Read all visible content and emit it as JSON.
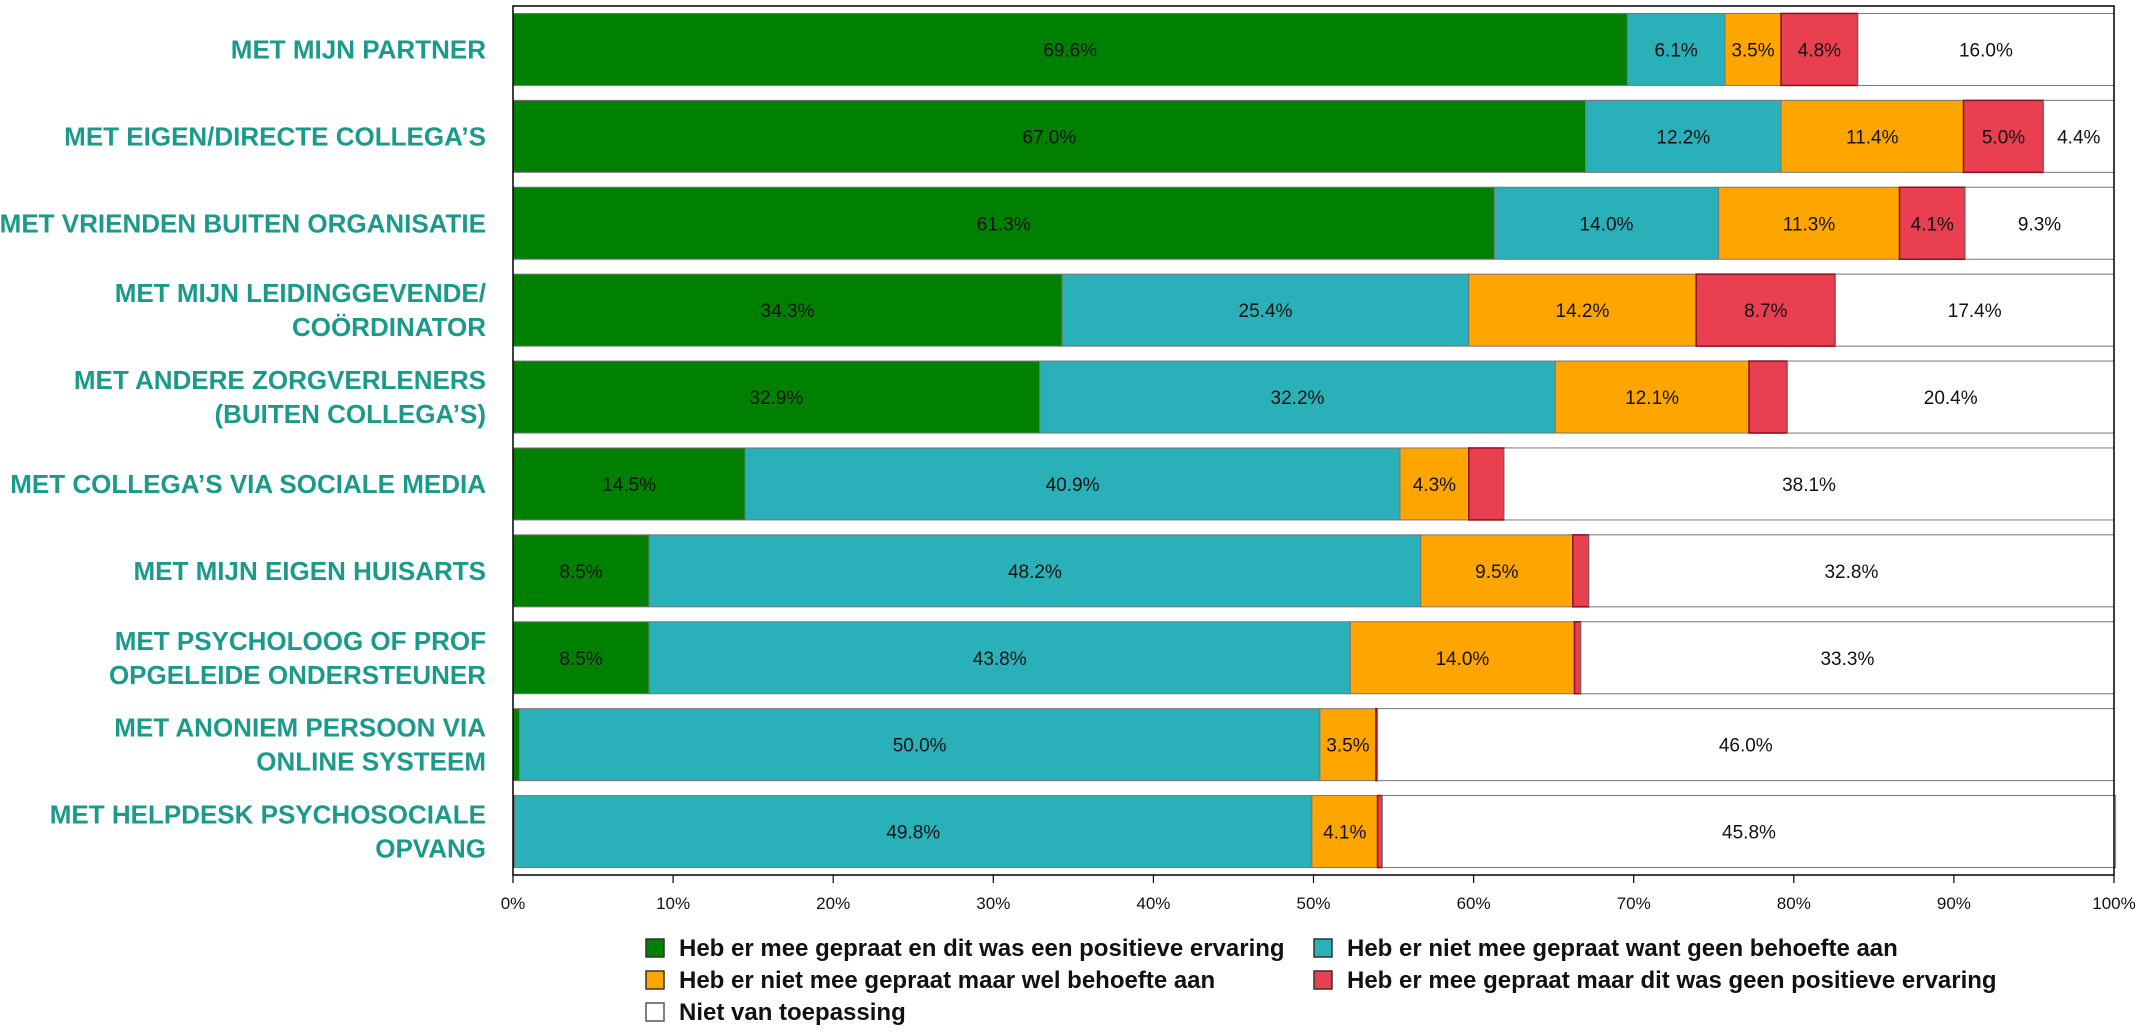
{
  "chart_data": {
    "type": "bar",
    "orientation": "horizontal",
    "stacked": true,
    "title": "",
    "xlabel": "",
    "ylabel": "",
    "xlim": [
      0,
      100
    ],
    "x_ticks": [
      "0%",
      "10%",
      "20%",
      "30%",
      "40%",
      "50%",
      "60%",
      "70%",
      "80%",
      "90%",
      "100%"
    ],
    "grid": false,
    "legend_position": "bottom",
    "categories": [
      [
        "MET MIJN PARTNER"
      ],
      [
        "MET EIGEN/DIRECTE COLLEGA’S"
      ],
      [
        "MET VRIENDEN BUITEN ORGANISATIE"
      ],
      [
        "MET MIJN LEIDINGGEVENDE/",
        "COÖRDINATOR"
      ],
      [
        "MET ANDERE ZORGVERLENERS",
        "(BUITEN COLLEGA’S)"
      ],
      [
        "MET COLLEGA’S VIA SOCIALE MEDIA"
      ],
      [
        "MET MIJN EIGEN HUISARTS"
      ],
      [
        "MET PSYCHOLOOG OF PROF",
        "OPGELEIDE ONDERSTEUNER"
      ],
      [
        "MET ANONIEM PERSOON VIA",
        "ONLINE SYSTEEM"
      ],
      [
        "MET HELPDESK PSYCHOSOCIALE",
        "OPVANG"
      ]
    ],
    "series": [
      {
        "name": "Heb er mee gepraat en dit was een positieve ervaring",
        "color": "#008000",
        "values": [
          69.6,
          67.0,
          61.3,
          34.3,
          32.9,
          14.5,
          8.5,
          8.5,
          0.4,
          0.1
        ],
        "labels": [
          "69.6%",
          "67.0%",
          "61.3%",
          "34.3%",
          "32.9%",
          "14.5%",
          "8.5%",
          "8.5%",
          "",
          ""
        ]
      },
      {
        "name": "Heb er niet mee gepraat want geen behoefte aan",
        "color": "#2ab0b8",
        "values": [
          6.1,
          12.2,
          14.0,
          25.4,
          32.2,
          40.9,
          48.2,
          43.8,
          50.0,
          49.8
        ],
        "labels": [
          "6.1%",
          "12.2%",
          "14.0%",
          "25.4%",
          "32.2%",
          "40.9%",
          "48.2%",
          "43.8%",
          "50.0%",
          "49.8%"
        ]
      },
      {
        "name": "Heb er niet mee gepraat maar wel behoefte aan",
        "color": "#ffa500",
        "values": [
          3.5,
          11.4,
          11.3,
          14.2,
          12.1,
          4.3,
          9.5,
          14.0,
          3.5,
          4.1
        ],
        "labels": [
          "3.5%",
          "11.4%",
          "11.3%",
          "14.2%",
          "12.1%",
          "4.3%",
          "9.5%",
          "14.0%",
          "3.5%",
          "4.1%"
        ]
      },
      {
        "name": "Heb er mee gepraat maar dit was geen positieve ervaring",
        "color": "#e84050",
        "values": [
          4.8,
          5.0,
          4.1,
          8.7,
          2.4,
          2.2,
          1.0,
          0.4,
          0.1,
          0.3
        ],
        "labels": [
          "4.8%",
          "5.0%",
          "4.1%",
          "8.7%",
          "",
          "",
          "",
          "",
          "",
          ""
        ]
      },
      {
        "name": "Niet van toepassing",
        "color": "#ffffff",
        "values": [
          16.0,
          4.4,
          9.3,
          17.4,
          20.4,
          38.1,
          32.8,
          33.3,
          46.0,
          45.8
        ],
        "labels": [
          "16.0%",
          "4.4%",
          "9.3%",
          "17.4%",
          "20.4%",
          "38.1%",
          "32.8%",
          "33.3%",
          "46.0%",
          "45.8%"
        ]
      }
    ]
  }
}
